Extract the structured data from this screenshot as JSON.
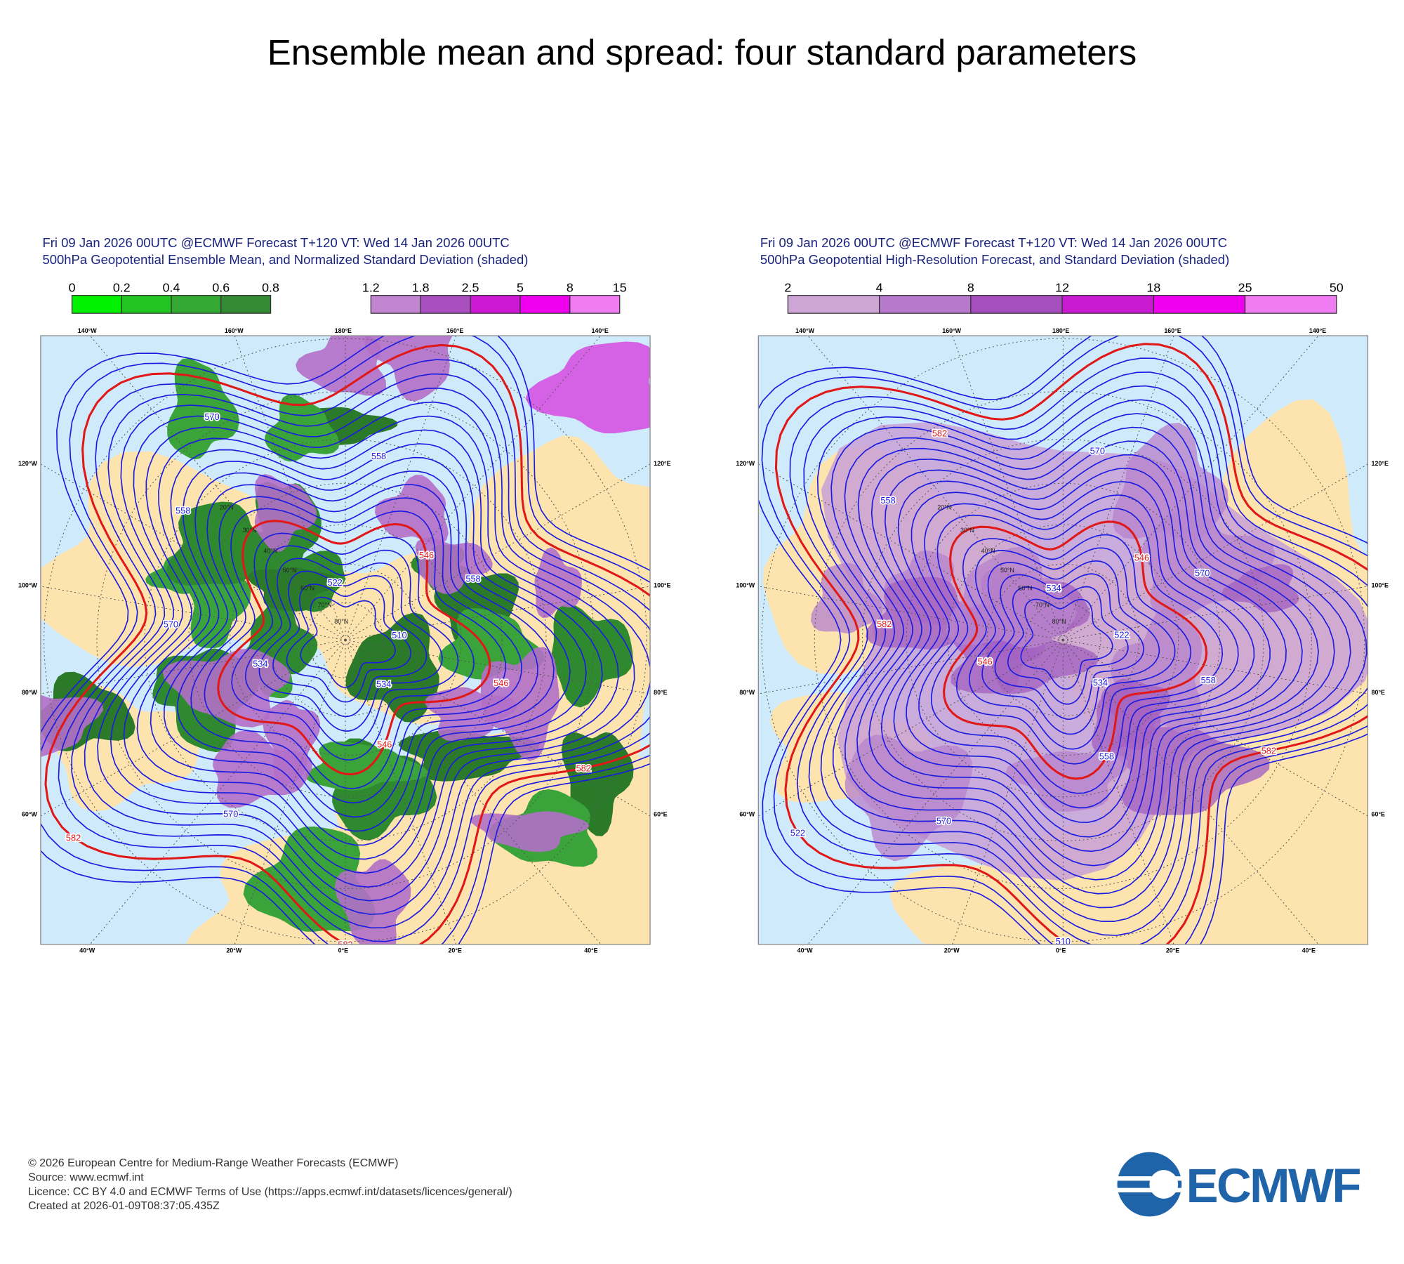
{
  "title": "Ensemble mean and spread: four standard parameters",
  "panels": [
    {
      "header": [
        "Fri 09 Jan 2026 00UTC @ECMWF Forecast T+120 VT: Wed 14 Jan 2026 00UTC",
        "500hPa Geopotential Ensemble Mean, and Normalized Standard Deviation (shaded)"
      ],
      "colorbars": [
        {
          "ticks": [
            0,
            0.2,
            0.4,
            0.6,
            0.8
          ],
          "colors": [
            "#00f000",
            "#22c422",
            "#33a833",
            "#338a33"
          ]
        },
        {
          "ticks": [
            1.2,
            1.8,
            2.5,
            5,
            8,
            15
          ],
          "colors": [
            "#c184d0",
            "#a94fbf",
            "#cc18d2",
            "#ee00ee",
            "#ef7cf0"
          ]
        }
      ],
      "lon_labels_top": [
        "140°W",
        "160°W",
        "180°E",
        "160°E",
        "140°E"
      ],
      "lon_labels_bottom": [
        "40°W",
        "20°W",
        "0°E",
        "20°E",
        "40°E"
      ],
      "lon_labels_left": [
        "120°W",
        "100°W",
        "80°W",
        "60°W"
      ],
      "lon_labels_right": [
        "120°E",
        "100°E",
        "80°E",
        "60°E"
      ],
      "lat_labels": [
        "20°N",
        "30°N",
        "40°N",
        "50°N",
        "60°N",
        "70°N",
        "80°N"
      ],
      "contour_labels": [
        582,
        570,
        558,
        546,
        534,
        582,
        570,
        558,
        546,
        534,
        522,
        510,
        582,
        570,
        558,
        546
      ]
    },
    {
      "header": [
        "Fri 09 Jan 2026 00UTC @ECMWF Forecast T+120 VT: Wed 14 Jan 2026 00UTC",
        "500hPa Geopotential High-Resolution Forecast, and Standard Deviation (shaded)"
      ],
      "colorbars": [
        {
          "ticks": [
            2,
            4,
            8,
            12,
            18,
            25,
            50
          ],
          "colors": [
            "#cda6d6",
            "#b679cb",
            "#a54ebd",
            "#c81ad0",
            "#ee00ee",
            "#ef7cf0"
          ]
        }
      ],
      "lon_labels_top": [
        "140°W",
        "160°W",
        "180°E",
        "160°E",
        "140°E"
      ],
      "lon_labels_bottom": [
        "40°W",
        "20°W",
        "0°E",
        "20°E",
        "40°E"
      ],
      "lon_labels_left": [
        "120°W",
        "100°W",
        "80°W",
        "60°W"
      ],
      "lon_labels_right": [
        "120°E",
        "100°E",
        "80°E",
        "60°E"
      ],
      "lat_labels": [
        "20°N",
        "30°N",
        "40°N",
        "50°N",
        "60°N",
        "70°N",
        "80°N"
      ],
      "contour_labels": [
        582,
        570,
        558,
        546,
        534,
        522,
        582,
        570,
        558,
        546,
        534,
        522,
        510,
        582,
        570,
        558
      ]
    }
  ],
  "footer": [
    "© 2026 European Centre for Medium-Range Weather Forecasts (ECMWF)",
    "Source: www.ecmwf.int",
    "Licence: CC BY 4.0 and ECMWF Terms of Use (https://apps.ecmwf.int/datasets/licences/general/)",
    "Created at 2026-01-09T08:37:05.435Z"
  ],
  "logo": "ECMWF"
}
